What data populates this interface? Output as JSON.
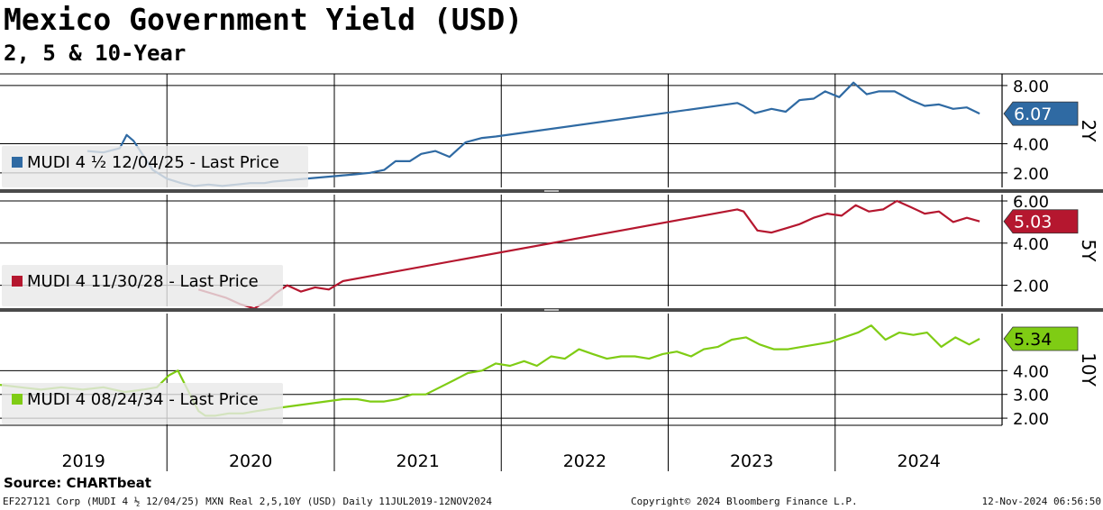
{
  "title": "Mexico Government Yield (USD)",
  "subtitle": "2, 5 & 10-Year",
  "source": "Source: CHARTbeat",
  "footer": {
    "left": "EF227121 Corp (MUDI 4 ½ 12/04/25) MXN Real 2,5,10Y (USD)  Daily 11JUL2019-12NOV2024",
    "center": "Copyright© 2024 Bloomberg Finance L.P.",
    "right": "12-Nov-2024 06:56:50"
  },
  "colors": {
    "y2": "#2f6aa3",
    "y5": "#b5172f",
    "y10": "#7fcc14",
    "background": "#ffffff",
    "grid": "#000000"
  },
  "chart_data": [
    {
      "type": "line",
      "axis_name": "2Y",
      "x_type": "date",
      "x_range": [
        "2019-01-01",
        "2024-12-31"
      ],
      "xticks": [
        "2019",
        "2020",
        "2021",
        "2022",
        "2023",
        "2024"
      ],
      "ylim": [
        1.0,
        8.8
      ],
      "yticks": [
        "2.00",
        "4.00",
        "8.00"
      ],
      "grid": true,
      "legend_placement": "bottom-left",
      "last_value": "6.07",
      "series": [
        {
          "name": "MUDI 4 ½ 12/04/25 - Last Price",
          "x": [
            "2019-07-11",
            "2019-08-15",
            "2019-09-20",
            "2019-10-05",
            "2019-10-20",
            "2019-11-10",
            "2019-12-01",
            "2020-01-01",
            "2020-02-01",
            "2020-03-01",
            "2020-04-01",
            "2020-05-01",
            "2020-06-01",
            "2020-07-01",
            "2020-08-01",
            "2020-08-20",
            "2021-01-10",
            "2021-02-15",
            "2021-03-20",
            "2021-04-20",
            "2021-05-15",
            "2021-06-15",
            "2021-07-10",
            "2021-08-10",
            "2021-09-10",
            "2021-10-15",
            "2021-11-20",
            "2021-12-20",
            "2023-06-01",
            "2023-06-15",
            "2023-07-10",
            "2023-08-15",
            "2023-09-15",
            "2023-10-15",
            "2023-11-15",
            "2023-12-10",
            "2024-01-10",
            "2024-02-10",
            "2024-03-10",
            "2024-04-05",
            "2024-05-10",
            "2024-06-15",
            "2024-07-15",
            "2024-08-15",
            "2024-09-15",
            "2024-10-15",
            "2024-11-12"
          ],
          "y": [
            3.5,
            3.4,
            3.7,
            4.6,
            4.2,
            3.2,
            2.2,
            1.6,
            1.3,
            1.1,
            1.2,
            1.1,
            1.2,
            1.3,
            1.3,
            1.4,
            1.8,
            1.9,
            2.0,
            2.2,
            2.8,
            2.8,
            3.3,
            3.5,
            3.1,
            4.1,
            4.4,
            4.5,
            6.8,
            6.6,
            6.1,
            6.4,
            6.2,
            7.0,
            7.1,
            7.6,
            7.2,
            8.2,
            7.4,
            7.6,
            7.6,
            7.0,
            6.6,
            6.7,
            6.4,
            6.5,
            6.07
          ]
        }
      ]
    },
    {
      "type": "line",
      "axis_name": "5Y",
      "x_type": "date",
      "x_range": [
        "2019-01-01",
        "2024-12-31"
      ],
      "xticks": [
        "2019",
        "2020",
        "2021",
        "2022",
        "2023",
        "2024"
      ],
      "ylim": [
        1.0,
        6.3
      ],
      "yticks": [
        "2.00",
        "4.00",
        "6.00"
      ],
      "grid": true,
      "legend_placement": "bottom-left",
      "last_value": "5.03",
      "series": [
        {
          "name": "MUDI 4 11/30/28 - Last Price",
          "x": [
            "2020-03-10",
            "2020-04-10",
            "2020-05-10",
            "2020-06-10",
            "2020-07-10",
            "2020-08-10",
            "2020-08-25",
            "2020-09-20",
            "2020-10-20",
            "2020-11-20",
            "2020-12-20",
            "2021-01-20",
            "2023-06-01",
            "2023-06-15",
            "2023-07-15",
            "2023-08-15",
            "2023-09-15",
            "2023-10-15",
            "2023-11-15",
            "2023-12-15",
            "2024-01-15",
            "2024-02-15",
            "2024-03-15",
            "2024-04-15",
            "2024-05-15",
            "2024-06-15",
            "2024-07-15",
            "2024-08-15",
            "2024-09-15",
            "2024-10-15",
            "2024-11-12"
          ],
          "y": [
            1.8,
            1.6,
            1.4,
            1.1,
            0.9,
            1.3,
            1.6,
            2.0,
            1.7,
            1.9,
            1.8,
            2.2,
            5.6,
            5.5,
            4.6,
            4.5,
            4.7,
            4.9,
            5.2,
            5.4,
            5.3,
            5.8,
            5.5,
            5.6,
            6.0,
            5.7,
            5.4,
            5.5,
            5.0,
            5.2,
            5.03
          ]
        }
      ]
    },
    {
      "type": "line",
      "axis_name": "10Y",
      "x_type": "date",
      "x_range": [
        "2019-01-01",
        "2024-12-31"
      ],
      "xticks": [
        "2019",
        "2020",
        "2021",
        "2022",
        "2023",
        "2024"
      ],
      "ylim": [
        1.7,
        6.4
      ],
      "yticks": [
        "2.00",
        "3.00",
        "4.00"
      ],
      "grid": true,
      "legend_placement": "bottom-left",
      "last_value": "5.34",
      "series": [
        {
          "name": "MUDI 4 08/24/34 - Last Price",
          "x": [
            "2019-01-01",
            "2019-02-15",
            "2019-04-01",
            "2019-05-15",
            "2019-07-01",
            "2019-08-15",
            "2019-10-01",
            "2019-11-10",
            "2019-12-10",
            "2020-01-05",
            "2020-01-25",
            "2020-02-15",
            "2020-03-10",
            "2020-03-25",
            "2020-04-15",
            "2020-05-15",
            "2020-06-15",
            "2020-07-15",
            "2020-08-20",
            "2021-01-20",
            "2021-02-20",
            "2021-03-20",
            "2021-04-20",
            "2021-05-20",
            "2021-06-20",
            "2021-07-20",
            "2021-08-20",
            "2021-09-20",
            "2021-10-20",
            "2021-11-20",
            "2021-12-20",
            "2022-01-20",
            "2022-02-20",
            "2022-03-20",
            "2022-04-20",
            "2022-05-20",
            "2022-06-20",
            "2022-07-20",
            "2022-08-20",
            "2022-09-20",
            "2022-10-20",
            "2022-11-20",
            "2022-12-20",
            "2023-01-20",
            "2023-02-20",
            "2023-03-20",
            "2023-04-20",
            "2023-05-20",
            "2023-06-20",
            "2023-07-20",
            "2023-08-20",
            "2023-09-20",
            "2023-10-20",
            "2023-11-20",
            "2023-12-20",
            "2024-01-20",
            "2024-02-20",
            "2024-03-20",
            "2024-04-20",
            "2024-05-20",
            "2024-06-20",
            "2024-07-20",
            "2024-08-20",
            "2024-09-20",
            "2024-10-20",
            "2024-11-12"
          ],
          "y": [
            3.4,
            3.3,
            3.2,
            3.3,
            3.2,
            3.3,
            3.1,
            3.2,
            3.3,
            3.8,
            4.0,
            3.2,
            2.3,
            2.1,
            2.1,
            2.2,
            2.2,
            2.3,
            2.4,
            2.8,
            2.8,
            2.7,
            2.7,
            2.8,
            3.0,
            3.0,
            3.3,
            3.6,
            3.9,
            4.0,
            4.3,
            4.2,
            4.4,
            4.2,
            4.6,
            4.5,
            4.9,
            4.7,
            4.5,
            4.6,
            4.6,
            4.5,
            4.7,
            4.8,
            4.6,
            4.9,
            5.0,
            5.3,
            5.4,
            5.1,
            4.9,
            4.9,
            5.0,
            5.1,
            5.2,
            5.4,
            5.6,
            5.9,
            5.3,
            5.6,
            5.5,
            5.6,
            5.0,
            5.4,
            5.1,
            5.34
          ]
        }
      ]
    }
  ]
}
